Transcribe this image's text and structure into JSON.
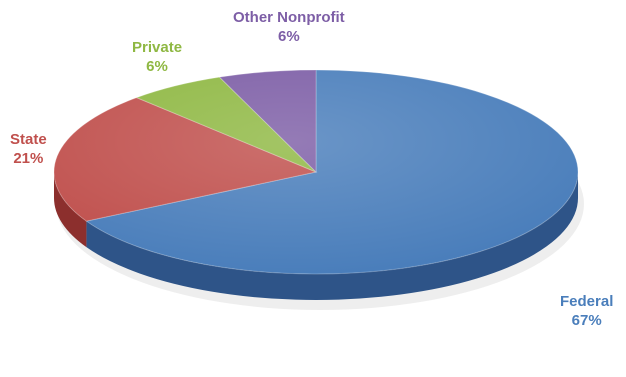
{
  "chart_data": {
    "type": "pie",
    "title": "",
    "legend": "none",
    "style": "3d",
    "slices": [
      {
        "label": "Federal",
        "value": 67,
        "value_label": "67%",
        "color": "#4a7ebb",
        "side_color": "#2e5488",
        "text_color": "#4a7ebb"
      },
      {
        "label": "State",
        "value": 21,
        "value_label": "21%",
        "color": "#c0504d",
        "side_color": "#8c2f2d",
        "text_color": "#c0504d"
      },
      {
        "label": "Private",
        "value": 6,
        "value_label": "6%",
        "color": "#8fb843",
        "side_color": "#5f7f28",
        "text_color": "#8fb843"
      },
      {
        "label": "Other Nonprofit",
        "value": 6,
        "value_label": "6%",
        "color": "#7d5ea6",
        "side_color": "#574078",
        "text_color": "#7d5ea6"
      }
    ]
  }
}
